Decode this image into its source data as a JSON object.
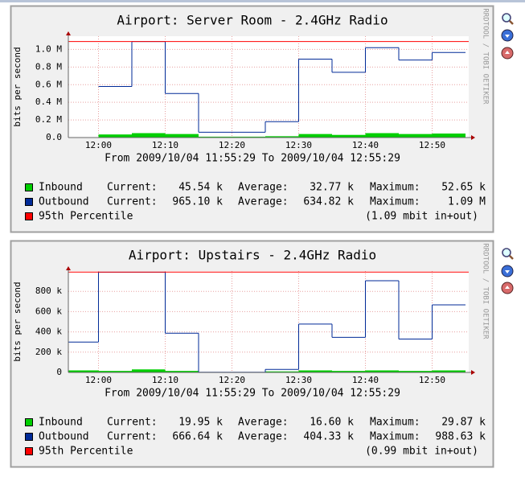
{
  "chart_data": [
    {
      "type": "line",
      "title": "Airport: Server Room - 2.4GHz Radio",
      "subtitle": "From 2009/10/04 11:55:29 To 2009/10/04 12:55:29",
      "y_label": "bits per second",
      "side_text": "RRDTOOL / TOBI OETIKER",
      "x": [
        "11:55",
        "12:00",
        "12:05",
        "12:10",
        "12:15",
        "12:20",
        "12:25",
        "12:30",
        "12:35",
        "12:40",
        "12:45",
        "12:50"
      ],
      "xlim": [
        "11:55:29",
        "12:55:29"
      ],
      "xticks": [
        "12:00",
        "12:10",
        "12:20",
        "12:30",
        "12:40",
        "12:50"
      ],
      "ylim": [
        0,
        1150000
      ],
      "yticks": [
        {
          "value": 0,
          "label": "0.0"
        },
        {
          "value": 200000,
          "label": "0.2 M"
        },
        {
          "value": 400000,
          "label": "0.4 M"
        },
        {
          "value": 600000,
          "label": "0.6 M"
        },
        {
          "value": 800000,
          "label": "0.8 M"
        },
        {
          "value": 1000000,
          "label": "1.0 M"
        }
      ],
      "grid": true,
      "legend_labels": {
        "current": "Current:",
        "average": "Average:",
        "maximum": "Maximum:"
      },
      "series": [
        {
          "name": "Inbound",
          "color": "#00cf00",
          "style": "area",
          "current": "45.54 k",
          "average": "32.77 k",
          "maximum": "52.65 k",
          "values": [
            null,
            35000,
            50000,
            40000,
            10000,
            10000,
            15000,
            40000,
            30000,
            50000,
            40000,
            45540
          ]
        },
        {
          "name": "Outbound",
          "color": "#002a97",
          "style": "line",
          "current": "965.10 k",
          "average": "634.82 k",
          "maximum": "1.09 M",
          "values": [
            null,
            580000,
            1090000,
            500000,
            60000,
            60000,
            180000,
            890000,
            740000,
            1020000,
            880000,
            965100
          ]
        }
      ],
      "percentile": {
        "name": "95th Percentile",
        "color": "#ff0000",
        "value": 1090000,
        "label": "(1.09 mbit in+out)"
      }
    },
    {
      "type": "line",
      "title": "Airport: Upstairs - 2.4GHz Radio",
      "subtitle": "From 2009/10/04 11:55:29 To 2009/10/04 12:55:29",
      "y_label": "bits per second",
      "side_text": "RRDTOOL / TOBI OETIKER",
      "x": [
        "11:55",
        "12:00",
        "12:05",
        "12:10",
        "12:15",
        "12:20",
        "12:25",
        "12:30",
        "12:35",
        "12:40",
        "12:45",
        "12:50"
      ],
      "xlim": [
        "11:55:29",
        "12:55:29"
      ],
      "xticks": [
        "12:00",
        "12:10",
        "12:20",
        "12:30",
        "12:40",
        "12:50"
      ],
      "ylim": [
        0,
        1000000
      ],
      "yticks": [
        0,
        {
          "value": 200000,
          "label": "200 k"
        },
        {
          "value": 400000,
          "label": "400 k"
        },
        {
          "value": 600000,
          "label": "600 k"
        },
        {
          "value": 800000,
          "label": "800 k"
        }
      ],
      "grid": true,
      "legend_labels": {
        "current": "Current:",
        "average": "Average:",
        "maximum": "Maximum:"
      },
      "series": [
        {
          "name": "Inbound",
          "color": "#00cf00",
          "style": "area",
          "current": "19.95 k",
          "average": "16.60 k",
          "maximum": "29.87 k",
          "values": [
            20000,
            15000,
            29870,
            15000,
            2000,
            2000,
            10000,
            20000,
            15000,
            20000,
            15000,
            19950
          ]
        },
        {
          "name": "Outbound",
          "color": "#002a97",
          "style": "line",
          "current": "666.64 k",
          "average": "404.33 k",
          "maximum": "988.63 k",
          "values": [
            300000,
            988630,
            988630,
            387000,
            2000,
            2000,
            30000,
            477000,
            346000,
            905000,
            329000,
            666640
          ]
        }
      ],
      "percentile": {
        "name": "95th Percentile",
        "color": "#ff0000",
        "value": 990000,
        "label": "(0.99 mbit in+out)"
      }
    }
  ]
}
